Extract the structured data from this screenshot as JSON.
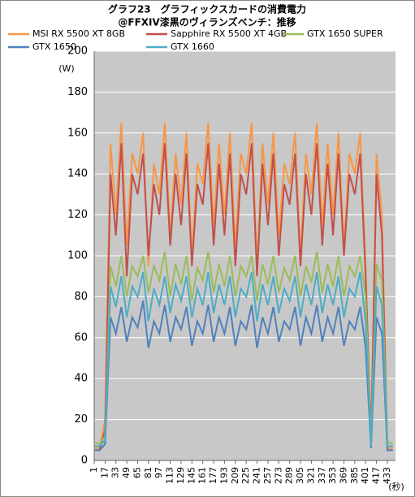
{
  "chart_data": {
    "type": "line",
    "title": "グラフ23　グラフィックスカードの消費電力",
    "subtitle": "@FFXIV漆黒のヴィランズベンチ：推移",
    "y_label": "(W)",
    "x_label": "(秒)",
    "x": [
      1,
      9,
      17,
      25,
      33,
      41,
      49,
      57,
      65,
      73,
      81,
      89,
      97,
      105,
      113,
      121,
      129,
      137,
      145,
      153,
      161,
      169,
      177,
      185,
      193,
      201,
      209,
      217,
      225,
      233,
      241,
      249,
      257,
      265,
      273,
      281,
      289,
      297,
      305,
      313,
      321,
      329,
      337,
      345,
      353,
      361,
      369,
      377,
      385,
      393,
      401,
      409,
      417,
      425,
      433,
      441
    ],
    "series": [
      {
        "name": "MSI RX 5500 XT 8GB",
        "color": "#f79646",
        "values": [
          6,
          6,
          20,
          155,
          120,
          165,
          105,
          150,
          140,
          160,
          95,
          145,
          130,
          165,
          110,
          150,
          125,
          160,
          100,
          145,
          135,
          165,
          115,
          155,
          120,
          160,
          105,
          150,
          140,
          165,
          95,
          155,
          125,
          160,
          110,
          145,
          135,
          160,
          100,
          150,
          130,
          165,
          115,
          155,
          120,
          160,
          105,
          150,
          140,
          160,
          95,
          7,
          150,
          120,
          6,
          6
        ]
      },
      {
        "name": "Sapphire RX 5500 XT 4GB",
        "color": "#c0504d",
        "values": [
          5,
          5,
          15,
          140,
          110,
          155,
          90,
          140,
          130,
          150,
          100,
          135,
          120,
          155,
          105,
          140,
          115,
          150,
          95,
          135,
          125,
          155,
          105,
          145,
          110,
          150,
          95,
          140,
          130,
          155,
          90,
          145,
          115,
          150,
          100,
          135,
          125,
          150,
          95,
          140,
          120,
          155,
          105,
          145,
          110,
          150,
          100,
          140,
          130,
          150,
          90,
          10,
          140,
          110,
          5,
          5
        ]
      },
      {
        "name": "GTX 1650 SUPER",
        "color": "#9bbb59",
        "values": [
          9,
          8,
          12,
          95,
          85,
          100,
          80,
          95,
          90,
          100,
          82,
          95,
          88,
          102,
          80,
          96,
          86,
          100,
          78,
          94,
          88,
          102,
          82,
          96,
          85,
          100,
          80,
          95,
          90,
          100,
          78,
          96,
          86,
          100,
          82,
          94,
          88,
          100,
          80,
          95,
          87,
          102,
          82,
          96,
          85,
          100,
          80,
          95,
          90,
          100,
          80,
          9,
          96,
          88,
          9,
          8
        ]
      },
      {
        "name": "GTX 1650",
        "color": "#4f81bd",
        "values": [
          5,
          5,
          8,
          70,
          62,
          75,
          58,
          70,
          65,
          78,
          55,
          68,
          62,
          76,
          58,
          70,
          64,
          75,
          56,
          68,
          62,
          76,
          58,
          70,
          62,
          75,
          56,
          68,
          64,
          76,
          55,
          70,
          62,
          75,
          58,
          68,
          64,
          75,
          56,
          70,
          62,
          76,
          58,
          70,
          62,
          75,
          56,
          68,
          64,
          75,
          55,
          6,
          70,
          62,
          5,
          5
        ]
      },
      {
        "name": "GTX 1660",
        "color": "#4bacc6",
        "values": [
          7,
          7,
          10,
          85,
          75,
          90,
          70,
          85,
          80,
          92,
          68,
          84,
          76,
          90,
          72,
          86,
          78,
          90,
          70,
          84,
          76,
          92,
          72,
          86,
          76,
          90,
          70,
          84,
          80,
          92,
          68,
          86,
          76,
          90,
          72,
          84,
          78,
          90,
          70,
          86,
          76,
          92,
          72,
          86,
          76,
          90,
          70,
          84,
          80,
          92,
          68,
          7,
          85,
          76,
          7,
          7
        ]
      }
    ],
    "xlim": [
      1,
      445
    ],
    "xticks": [
      1,
      17,
      33,
      49,
      65,
      81,
      97,
      113,
      129,
      145,
      161,
      177,
      193,
      209,
      225,
      241,
      257,
      273,
      289,
      305,
      321,
      337,
      353,
      369,
      385,
      401,
      417,
      433
    ],
    "ylim": [
      0,
      200
    ],
    "yticks": [
      0,
      20,
      40,
      60,
      80,
      100,
      120,
      140,
      160,
      180,
      200
    ],
    "grid": true
  }
}
